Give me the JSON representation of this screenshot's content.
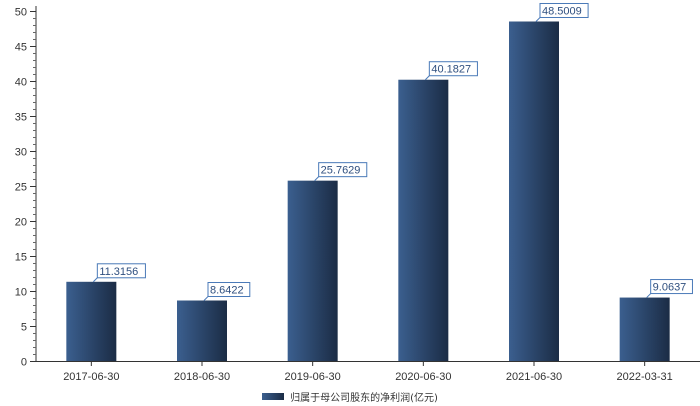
{
  "chart_data": {
    "type": "bar",
    "categories": [
      "2017-06-30",
      "2018-06-30",
      "2019-06-30",
      "2020-06-30",
      "2021-06-30",
      "2022-03-31"
    ],
    "series": [
      {
        "name": "归属于母公司股东的净利润(亿元)",
        "values": [
          11.3156,
          8.6422,
          25.7629,
          40.1827,
          48.5009,
          9.0637
        ],
        "labels": [
          "11.3156",
          "8.6422",
          "25.7629",
          "40.1827",
          "48.5009",
          "9.0637"
        ]
      }
    ],
    "ylim": [
      0,
      50
    ],
    "yticks": [
      0,
      5,
      10,
      15,
      20,
      25,
      30,
      35,
      40,
      45,
      50
    ],
    "title": "",
    "xlabel": "",
    "ylabel": "",
    "grid": false,
    "legend_position": "bottom",
    "colors": {
      "bar_light": "#3b5f8f",
      "bar_dark": "#1b2c45",
      "label_border": "#4a7ab8",
      "axis": "#333333"
    }
  }
}
